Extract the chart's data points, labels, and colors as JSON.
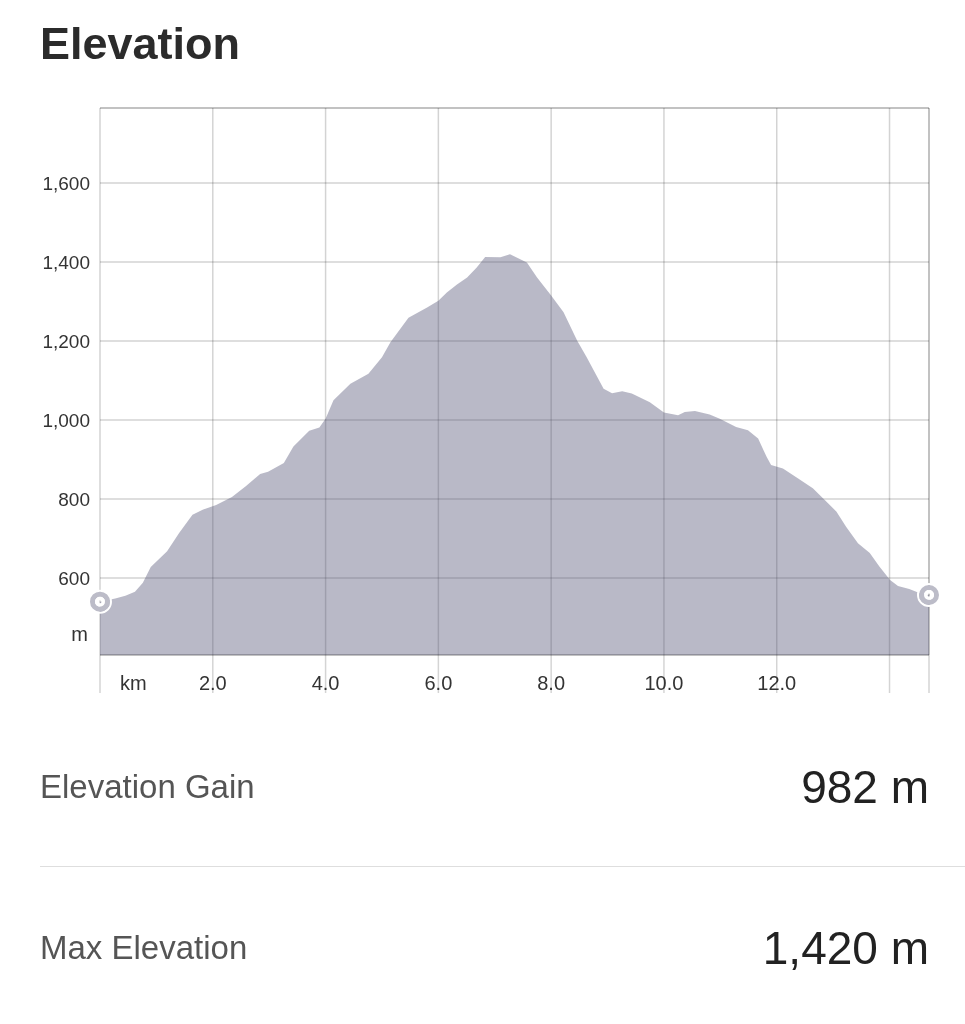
{
  "chart_data": {
    "type": "area",
    "title": "Elevation",
    "xlabel": "km",
    "ylabel": "m",
    "x": [
      0,
      0.27,
      0.45,
      0.62,
      0.76,
      0.9,
      1.19,
      1.4,
      1.64,
      1.82,
      2.06,
      2.34,
      2.59,
      2.84,
      2.98,
      3.26,
      3.43,
      3.71,
      3.89,
      4.0,
      4.14,
      4.44,
      4.76,
      5.0,
      5.15,
      5.47,
      5.8,
      6.0,
      6.15,
      6.33,
      6.51,
      6.68,
      6.83,
      7.1,
      7.27,
      7.57,
      7.75,
      8.0,
      8.22,
      8.46,
      8.63,
      8.93,
      9.08,
      9.26,
      9.43,
      9.75,
      10.0,
      10.25,
      10.37,
      10.55,
      10.81,
      10.99,
      11.28,
      11.49,
      11.67,
      11.82,
      11.9,
      12.11,
      12.38,
      12.64,
      12.82,
      13.06,
      13.23,
      13.44,
      13.65,
      13.82,
      14.01,
      14.15,
      14.35,
      14.53,
      14.7
    ],
    "series": [
      {
        "color": "#b9b9c7",
        "values": [
          540,
          548,
          555,
          565,
          588,
          628,
          668,
          713,
          760,
          773,
          785,
          805,
          833,
          863,
          869,
          891,
          933,
          973,
          981,
          1003,
          1050,
          1092,
          1117,
          1159,
          1197,
          1259,
          1285,
          1302,
          1323,
          1343,
          1361,
          1386,
          1413,
          1412,
          1420,
          1399,
          1361,
          1315,
          1273,
          1201,
          1159,
          1079,
          1068,
          1073,
          1067,
          1045,
          1019,
          1012,
          1020,
          1023,
          1014,
          1003,
          982,
          974,
          953,
          907,
          886,
          877,
          852,
          827,
          802,
          768,
          730,
          688,
          663,
          629,
          595,
          580,
          572,
          562,
          557
        ]
      },
      {
        "type": "scatter",
        "color": "#bcbcc8",
        "marker": "circle",
        "x": [
          0,
          14.7
        ],
        "values": [
          540,
          557
        ]
      }
    ],
    "xlim": [
      0,
      14.7
    ],
    "xticks": [
      {
        "value": 0,
        "label": null
      },
      {
        "value": 2,
        "label": "2.0"
      },
      {
        "value": 4,
        "label": "4.0"
      },
      {
        "value": 6,
        "label": "6.0"
      },
      {
        "value": 8,
        "label": "8.0"
      },
      {
        "value": 10,
        "label": "10.0"
      },
      {
        "value": 12,
        "label": "12.0"
      },
      {
        "value": 14,
        "label": null
      }
    ],
    "ylim": [
      405,
      1790
    ],
    "yticks": [
      600,
      800,
      {
        "value": 1000,
        "label": "1,000"
      },
      {
        "value": 1200,
        "label": "1,200"
      },
      {
        "value": 1400,
        "label": "1,400"
      },
      {
        "value": 1600,
        "label": "1,600"
      }
    ],
    "grid": true,
    "annotations": [
      "Elevation Gain",
      "982 m",
      "Max Elevation",
      "1,420 m"
    ]
  }
}
